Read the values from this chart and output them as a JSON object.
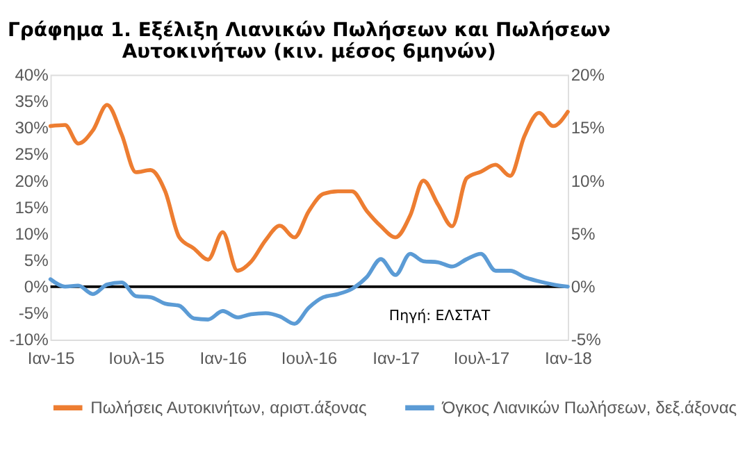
{
  "chart_data": {
    "type": "line",
    "title": "Γράφημα 1. Εξέλιξη Λιανικών Πωλήσεων και Πωλήσεων Αυτοκινήτων (κιν. μέσος 6μηνών)",
    "x": [
      "2015-01",
      "2015-02",
      "2015-03",
      "2015-04",
      "2015-05",
      "2015-06",
      "2015-07",
      "2015-08",
      "2015-09",
      "2015-10",
      "2015-11",
      "2015-12",
      "2016-01",
      "2016-02",
      "2016-03",
      "2016-04",
      "2016-05",
      "2016-06",
      "2016-07",
      "2016-08",
      "2016-09",
      "2016-10",
      "2016-11",
      "2016-12",
      "2017-01",
      "2017-02",
      "2017-03",
      "2017-04",
      "2017-05",
      "2017-06",
      "2017-07",
      "2017-08",
      "2017-09",
      "2017-10",
      "2017-11",
      "2017-12",
      "2018-01"
    ],
    "series": [
      {
        "name": "Πωλήσεις Αυτοκινήτων, αριστ.άξονας",
        "color": "#ed7d31",
        "values": [
          30.3,
          30.5,
          27,
          29.5,
          34.3,
          28.7,
          21.6,
          22,
          18,
          9.3,
          7.2,
          5.1,
          10.3,
          3,
          4.7,
          8.8,
          11.5,
          9.3,
          14.2,
          17.5,
          18,
          18,
          14.3,
          11.4,
          9.3,
          13.4,
          20,
          15.5,
          11.4,
          20.5,
          21.7,
          23,
          20.9,
          28.4,
          32.8,
          30.3,
          33
        ]
      },
      {
        "name": "Όγκος Λιανικών Πωλήσεων, δεξ.άξονας",
        "color": "#5b9bd5",
        "axis": "y2",
        "values": [
          0.7,
          0,
          0.1,
          -0.7,
          0.2,
          0.4,
          -0.9,
          -1,
          -1.6,
          -1.8,
          -3,
          -3.1,
          -2.3,
          -2.9,
          -2.6,
          -2.5,
          -2.8,
          -3.5,
          -2,
          -1,
          -0.7,
          -0.2,
          0.9,
          2.6,
          1.1,
          3.1,
          2.4,
          2.3,
          1.9,
          2.6,
          3.1,
          1.5,
          1.5,
          0.9,
          0.5,
          0.2,
          0
        ]
      }
    ],
    "xlim": [
      "2015-01",
      "2018-01"
    ],
    "xticks": [
      {
        "value": "2015-01",
        "label": "Ιαν-15"
      },
      {
        "value": "2015-07",
        "label": "Ιουλ-15"
      },
      {
        "value": "2016-01",
        "label": "Ιαν-16"
      },
      {
        "value": "2016-07",
        "label": "Ιουλ-16"
      },
      {
        "value": "2017-01",
        "label": "Ιαν-17"
      },
      {
        "value": "2017-07",
        "label": "Ιουλ-17"
      },
      {
        "value": "2018-01",
        "label": "Ιαν-18"
      }
    ],
    "ylim": [
      -10,
      40
    ],
    "yticks": [
      {
        "value": -10,
        "label": "-10%"
      },
      {
        "value": -5,
        "label": "-5%"
      },
      {
        "value": 0,
        "label": "0%"
      },
      {
        "value": 5,
        "label": "5%"
      },
      {
        "value": 10,
        "label": "10%"
      },
      {
        "value": 15,
        "label": "15%"
      },
      {
        "value": 20,
        "label": "20%"
      },
      {
        "value": 25,
        "label": "25%"
      },
      {
        "value": 30,
        "label": "30%"
      },
      {
        "value": 35,
        "label": "35%"
      },
      {
        "value": 40,
        "label": "40%"
      }
    ],
    "y2lim": [
      -5,
      20
    ],
    "y2ticks": [
      {
        "value": -5,
        "label": "-5%"
      },
      {
        "value": 0,
        "label": "0%"
      },
      {
        "value": 5,
        "label": "5%"
      },
      {
        "value": 10,
        "label": "10%"
      },
      {
        "value": 15,
        "label": "15%"
      },
      {
        "value": 20,
        "label": "20%"
      }
    ],
    "ref_lines": [
      {
        "axis": "y",
        "value": 0,
        "color": "#000000"
      }
    ],
    "annotations": [
      "Πηγή: ΕΛΣΤΑΤ"
    ],
    "grid": false,
    "legend": "bottom",
    "marker": "none",
    "line_style": "solid"
  }
}
